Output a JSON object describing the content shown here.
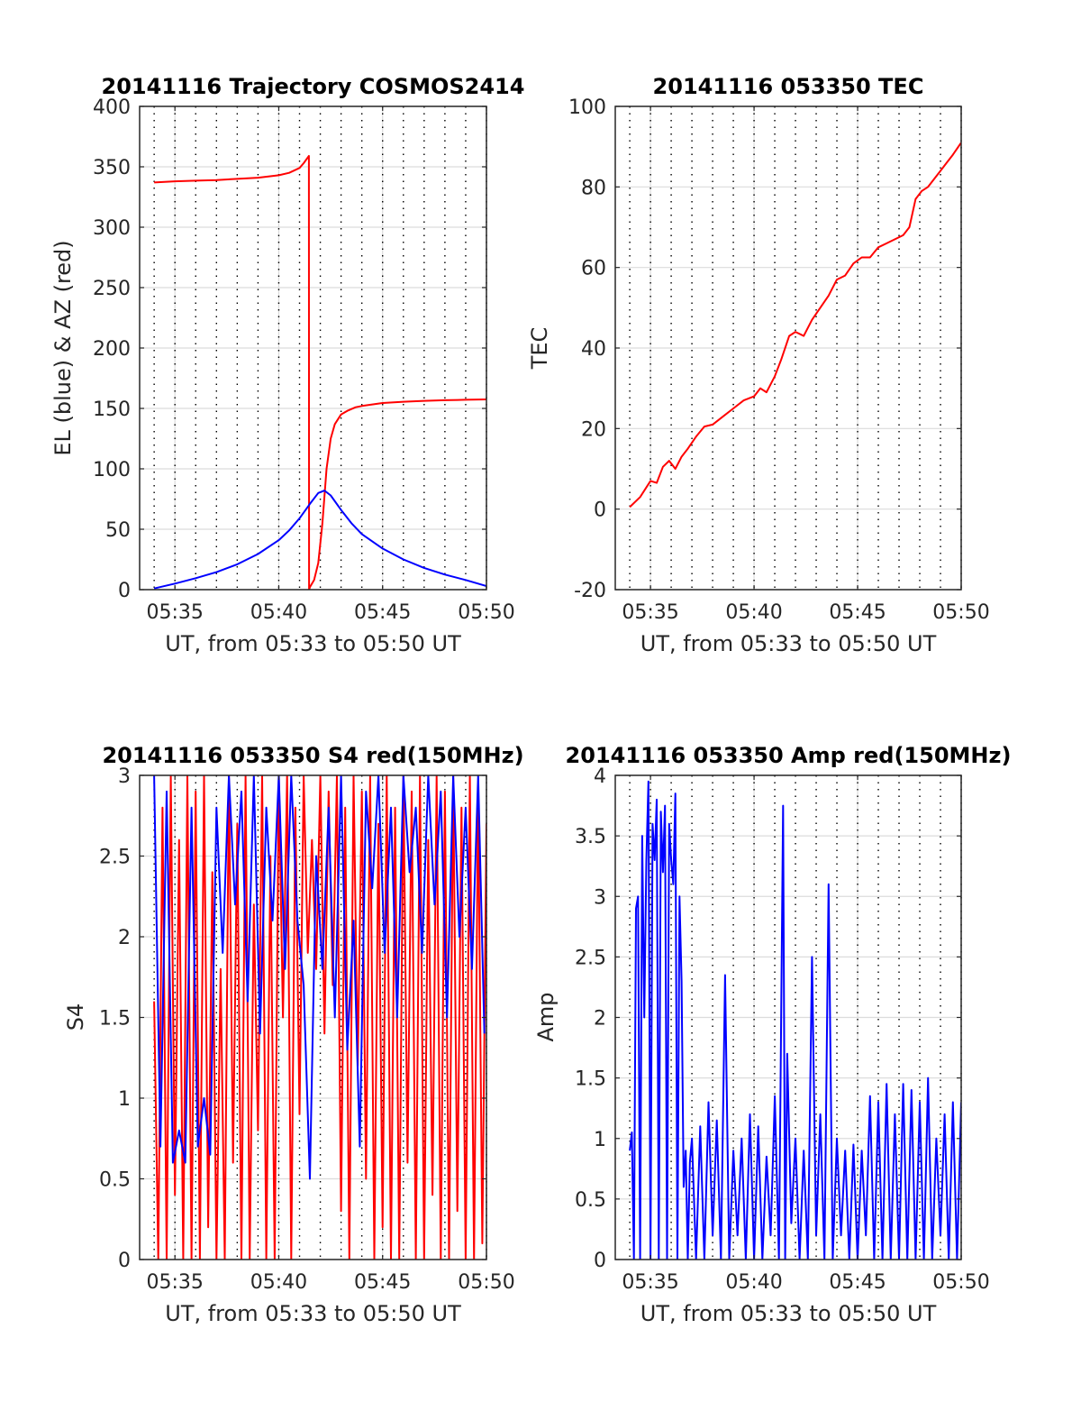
{
  "chart_data": [
    {
      "id": "trajectory",
      "type": "line",
      "title": "20141116 Trajectory COSMOS2414",
      "xlabel": "UT, from 05:33 to 05:50 UT",
      "ylabel": "EL (blue) & AZ (red)",
      "xlim": [
        33.3,
        50.0
      ],
      "ylim": [
        0,
        400
      ],
      "xticks": [
        35,
        40,
        45,
        50
      ],
      "xtick_labels": [
        "05:35",
        "05:40",
        "05:45",
        "05:50"
      ],
      "yticks": [
        0,
        50,
        100,
        150,
        200,
        250,
        300,
        350,
        400
      ],
      "ytick_labels": [
        "0",
        "50",
        "100",
        "150",
        "200",
        "250",
        "300",
        "350",
        "400"
      ],
      "grid": true,
      "series": [
        {
          "color": "#ff0000",
          "x": [
            34.0,
            35.0,
            36.0,
            37.0,
            38.0,
            39.0,
            40.0,
            40.5,
            41.0,
            41.2,
            41.45,
            41.46,
            41.5,
            41.7,
            41.9,
            42.1,
            42.3,
            42.5,
            42.7,
            43.0,
            43.3,
            43.7,
            44.0,
            45.0,
            46.0,
            47.0,
            48.0,
            49.0,
            50.0
          ],
          "y": [
            337,
            338,
            338.5,
            339,
            340,
            341,
            343,
            345,
            349,
            353,
            359,
            0,
            2,
            8,
            22,
            55,
            100,
            125,
            137,
            145,
            148,
            151,
            152,
            154.5,
            155.5,
            156.3,
            156.8,
            157.2,
            157.5
          ]
        },
        {
          "color": "#0000ff",
          "x": [
            34.0,
            35.0,
            36.0,
            37.0,
            38.0,
            39.0,
            40.0,
            40.5,
            41.0,
            41.5,
            41.9,
            42.2,
            42.5,
            43.0,
            43.5,
            44.0,
            45.0,
            46.0,
            47.0,
            48.0,
            49.0,
            50.0
          ],
          "y": [
            1,
            5,
            9.5,
            14.5,
            21,
            29.5,
            41,
            49,
            59,
            71,
            80,
            82,
            78,
            66,
            55,
            46,
            34,
            25,
            18,
            12.5,
            8,
            3
          ]
        }
      ]
    },
    {
      "id": "tec",
      "type": "line",
      "title": "20141116 053350 TEC",
      "xlabel": "UT, from 05:33 to 05:50 UT",
      "ylabel": "TEC",
      "xlim": [
        33.3,
        50.0
      ],
      "ylim": [
        -20,
        100
      ],
      "xticks": [
        35,
        40,
        45,
        50
      ],
      "xtick_labels": [
        "05:35",
        "05:40",
        "05:45",
        "05:50"
      ],
      "yticks": [
        -20,
        0,
        20,
        40,
        60,
        80,
        100
      ],
      "ytick_labels": [
        "-20",
        "0",
        "20",
        "40",
        "60",
        "80",
        "100"
      ],
      "grid": true,
      "series": [
        {
          "color": "#ff0000",
          "x": [
            34.0,
            34.5,
            35.0,
            35.3,
            35.6,
            35.9,
            36.2,
            36.5,
            36.8,
            37.2,
            37.6,
            38.0,
            38.5,
            39.0,
            39.5,
            40.0,
            40.3,
            40.6,
            41.0,
            41.3,
            41.7,
            42.0,
            42.4,
            42.8,
            43.2,
            43.6,
            44.0,
            44.4,
            44.8,
            45.2,
            45.6,
            46.0,
            46.4,
            46.8,
            47.2,
            47.5,
            47.8,
            48.1,
            48.4,
            48.7,
            49.0,
            49.3,
            49.6,
            50.0
          ],
          "y": [
            0.5,
            3,
            7,
            6.5,
            10.5,
            12,
            10,
            13,
            15,
            18,
            20.5,
            21,
            23,
            25,
            27,
            28,
            30,
            29,
            33,
            37,
            43,
            44,
            43,
            47,
            50,
            53,
            57,
            58,
            61,
            62.5,
            62.5,
            65,
            66,
            67,
            68,
            70,
            77,
            79,
            80,
            82,
            84,
            86,
            88,
            91
          ]
        }
      ]
    },
    {
      "id": "s4",
      "type": "line",
      "title": "20141116 053350 S4 red(150MHz)",
      "xlabel": "UT, from 05:33 to 05:50 UT",
      "ylabel": "S4",
      "xlim": [
        33.3,
        50.0
      ],
      "ylim": [
        0,
        3
      ],
      "xticks": [
        35,
        40,
        45,
        50
      ],
      "xtick_labels": [
        "05:35",
        "05:40",
        "05:45",
        "05:50"
      ],
      "yticks": [
        0,
        0.5,
        1,
        1.5,
        2,
        2.5,
        3
      ],
      "ytick_labels": [
        "0",
        "0.5",
        "1",
        "1.5",
        "2",
        "2.5",
        "3"
      ],
      "grid": true,
      "series": [
        {
          "color": "#ff0000",
          "x": [
            34.0,
            34.2,
            34.4,
            34.6,
            34.8,
            35.0,
            35.2,
            35.4,
            35.6,
            35.8,
            36.0,
            36.2,
            36.4,
            36.6,
            36.8,
            37.0,
            37.2,
            37.4,
            37.6,
            37.8,
            38.0,
            38.2,
            38.4,
            38.6,
            38.8,
            39.0,
            39.2,
            39.4,
            39.6,
            39.8,
            40.0,
            40.2,
            40.4,
            40.6,
            40.8,
            41.0,
            41.2,
            41.4,
            41.6,
            41.8,
            42.0,
            42.2,
            42.4,
            42.6,
            42.8,
            43.0,
            43.2,
            43.4,
            43.6,
            43.8,
            44.0,
            44.2,
            44.4,
            44.6,
            44.8,
            45.0,
            45.2,
            45.4,
            45.6,
            45.8,
            46.0,
            46.2,
            46.4,
            46.6,
            46.8,
            47.0,
            47.2,
            47.4,
            47.6,
            47.8,
            48.0,
            48.2,
            48.4,
            48.6,
            48.8,
            49.0,
            49.2,
            49.4,
            49.6,
            49.8,
            50.0
          ],
          "y": [
            1.6,
            0,
            2.8,
            0,
            3,
            0.4,
            2.6,
            0,
            3,
            0,
            2.9,
            0,
            3,
            0.2,
            2.4,
            0,
            1.8,
            0,
            3,
            0.6,
            2.7,
            0,
            3,
            0,
            2.2,
            0.8,
            3,
            0,
            2.5,
            0,
            3,
            1.5,
            3,
            0,
            2.8,
            0.9,
            3,
            1.9,
            2.6,
            1.8,
            3,
            1.4,
            2.9,
            1.7,
            3,
            0.3,
            2.8,
            0,
            3,
            1.2,
            2.9,
            0.5,
            3,
            0,
            2.7,
            0.2,
            3,
            0,
            2.8,
            0,
            3,
            0.6,
            2.9,
            0,
            3,
            0,
            2.6,
            0.4,
            3,
            0,
            2.9,
            0,
            3,
            0.3,
            2.8,
            0,
            3,
            0,
            2.9,
            0.1,
            2.7
          ]
        },
        {
          "color": "#0000ff",
          "x": [
            34.0,
            34.3,
            34.6,
            34.9,
            35.2,
            35.5,
            35.8,
            36.1,
            36.4,
            36.7,
            37.0,
            37.3,
            37.6,
            37.9,
            38.2,
            38.5,
            38.8,
            39.1,
            39.4,
            39.7,
            40.0,
            40.3,
            40.6,
            40.9,
            41.2,
            41.5,
            41.8,
            42.1,
            42.4,
            42.7,
            43.0,
            43.3,
            43.6,
            43.9,
            44.2,
            44.5,
            44.8,
            45.1,
            45.4,
            45.7,
            46.0,
            46.3,
            46.6,
            46.9,
            47.2,
            47.5,
            47.8,
            48.1,
            48.4,
            48.7,
            49.0,
            49.3,
            49.6,
            49.9
          ],
          "y": [
            3,
            0.7,
            2.9,
            0.6,
            0.8,
            0.6,
            2.8,
            0.7,
            1.0,
            0.65,
            2.8,
            1.9,
            3,
            2.2,
            2.9,
            1.6,
            3,
            1.4,
            2.8,
            2.1,
            3,
            1.8,
            3,
            2.1,
            1.7,
            0.5,
            2.5,
            1.8,
            2.8,
            1.5,
            3,
            1.3,
            2.1,
            0.7,
            2.9,
            2.3,
            3,
            1.9,
            2.8,
            1.5,
            3,
            2.4,
            2.8,
            1.9,
            3,
            2.2,
            2.9,
            1.5,
            3,
            2.0,
            2.8,
            1.8,
            3,
            1.4
          ]
        }
      ]
    },
    {
      "id": "amp",
      "type": "line",
      "title": "20141116 053350 Amp red(150MHz)",
      "xlabel": "UT, from 05:33 to 05:50 UT",
      "ylabel": "Amp",
      "xlim": [
        33.3,
        50.0
      ],
      "ylim": [
        0,
        4
      ],
      "xticks": [
        35,
        40,
        45,
        50
      ],
      "xtick_labels": [
        "05:35",
        "05:40",
        "05:45",
        "05:50"
      ],
      "yticks": [
        0,
        0.5,
        1,
        1.5,
        2,
        2.5,
        3,
        3.5,
        4
      ],
      "ytick_labels": [
        "0",
        "0.5",
        "1",
        "1.5",
        "2",
        "2.5",
        "3",
        "3.5",
        "4"
      ],
      "grid": true,
      "series": [
        {
          "color": "#0000ff",
          "x": [
            34.0,
            34.1,
            34.2,
            34.3,
            34.4,
            34.5,
            34.6,
            34.7,
            34.8,
            34.9,
            35.0,
            35.1,
            35.2,
            35.3,
            35.4,
            35.5,
            35.6,
            35.7,
            35.8,
            35.9,
            36.0,
            36.1,
            36.2,
            36.3,
            36.4,
            36.5,
            36.6,
            36.7,
            36.8,
            36.9,
            37.0,
            37.2,
            37.4,
            37.6,
            37.8,
            38.0,
            38.2,
            38.4,
            38.6,
            38.8,
            39.0,
            39.2,
            39.4,
            39.6,
            39.8,
            40.0,
            40.2,
            40.4,
            40.6,
            40.8,
            41.0,
            41.2,
            41.4,
            41.5,
            41.6,
            41.8,
            42.0,
            42.2,
            42.4,
            42.6,
            42.8,
            43.0,
            43.2,
            43.4,
            43.6,
            43.8,
            44.0,
            44.2,
            44.4,
            44.6,
            44.8,
            45.0,
            45.2,
            45.4,
            45.6,
            45.8,
            46.0,
            46.2,
            46.4,
            46.6,
            46.8,
            47.0,
            47.2,
            47.4,
            47.6,
            47.8,
            48.0,
            48.2,
            48.4,
            48.6,
            48.8,
            49.0,
            49.2,
            49.4,
            49.6,
            49.8,
            50.0
          ],
          "y": [
            0.9,
            1.05,
            0,
            2.9,
            3.0,
            0,
            3.5,
            2.0,
            3.3,
            3.95,
            0,
            3.6,
            3.3,
            3.8,
            0,
            3.7,
            3.2,
            3.75,
            0,
            3.6,
            3.3,
            3.1,
            3.85,
            0,
            3.0,
            2.3,
            0.6,
            0.9,
            0,
            0.8,
            1.0,
            0,
            1.1,
            0,
            1.3,
            0.2,
            1.15,
            0,
            2.35,
            0,
            0.9,
            0.2,
            1.0,
            0,
            1.2,
            0,
            1.1,
            0,
            0.85,
            0.2,
            1.35,
            0,
            3.75,
            0,
            1.7,
            0.3,
            1.0,
            0,
            0.9,
            0,
            2.5,
            0.2,
            1.2,
            0,
            3.1,
            0,
            1.0,
            0.2,
            0.9,
            0,
            0.95,
            0,
            0.9,
            0.2,
            1.35,
            0,
            1.3,
            0,
            1.45,
            0,
            1.2,
            0,
            1.45,
            0,
            1.4,
            0,
            1.3,
            0,
            1.5,
            0,
            1.0,
            0.2,
            1.2,
            0,
            1.3,
            0,
            1.3
          ]
        }
      ]
    }
  ]
}
